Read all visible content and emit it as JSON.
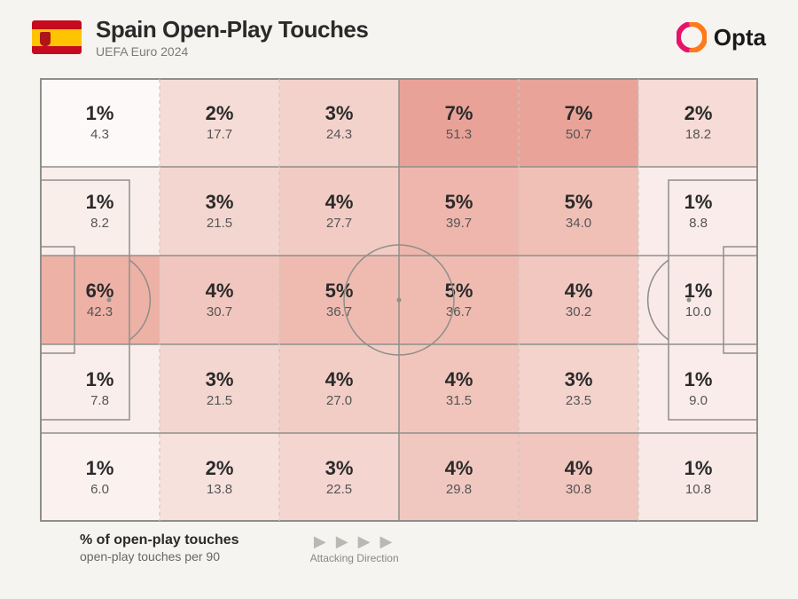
{
  "header": {
    "title": "Spain Open-Play Touches",
    "subtitle": "UEFA Euro 2024",
    "brand": "Opta",
    "flag_top_color": "#c60b1e",
    "flag_mid_color": "#ffc400",
    "flag_bot_color": "#c60b1e"
  },
  "legend": {
    "pct_label": "% of open-play touches",
    "val_label": "open-play touches per 90",
    "direction_label": "Attacking Direction"
  },
  "heatmap": {
    "type": "heatmap",
    "rows": 5,
    "cols": 6,
    "pitch_line_color": "#8f8f8a",
    "pitch_line_width": 1.5,
    "dashed_col_divider_color": "#c9c9c5",
    "percent_fontsize": 22,
    "percent_fontweight": 700,
    "value_fontsize": 15,
    "value_color": "#555555",
    "cells": [
      [
        {
          "pct": "1%",
          "val": "4.3",
          "bg": "#fdf9f8"
        },
        {
          "pct": "2%",
          "val": "17.7",
          "bg": "#f6dcd7"
        },
        {
          "pct": "3%",
          "val": "24.3",
          "bg": "#f4d2cc"
        },
        {
          "pct": "7%",
          "val": "51.3",
          "bg": "#e9a298"
        },
        {
          "pct": "7%",
          "val": "50.7",
          "bg": "#e9a399"
        },
        {
          "pct": "2%",
          "val": "18.2",
          "bg": "#f6dbd6"
        }
      ],
      [
        {
          "pct": "1%",
          "val": "8.2",
          "bg": "#faeeeb"
        },
        {
          "pct": "3%",
          "val": "21.5",
          "bg": "#f4d6d0"
        },
        {
          "pct": "4%",
          "val": "27.7",
          "bg": "#f2ccc4"
        },
        {
          "pct": "5%",
          "val": "39.7",
          "bg": "#eeb6ac"
        },
        {
          "pct": "5%",
          "val": "34.0",
          "bg": "#f0c0b7"
        },
        {
          "pct": "1%",
          "val": "8.8",
          "bg": "#faecea"
        }
      ],
      [
        {
          "pct": "6%",
          "val": "42.3",
          "bg": "#edb1a6"
        },
        {
          "pct": "4%",
          "val": "30.7",
          "bg": "#f1c6be"
        },
        {
          "pct": "5%",
          "val": "36.7",
          "bg": "#efbbb1"
        },
        {
          "pct": "5%",
          "val": "36.7",
          "bg": "#efbbb1"
        },
        {
          "pct": "4%",
          "val": "30.2",
          "bg": "#f1c7bf"
        },
        {
          "pct": "1%",
          "val": "10.0",
          "bg": "#f9eae7"
        }
      ],
      [
        {
          "pct": "1%",
          "val": "7.8",
          "bg": "#faeeec"
        },
        {
          "pct": "3%",
          "val": "21.5",
          "bg": "#f4d6d0"
        },
        {
          "pct": "4%",
          "val": "27.0",
          "bg": "#f2cdc6"
        },
        {
          "pct": "4%",
          "val": "31.5",
          "bg": "#f1c5bc"
        },
        {
          "pct": "3%",
          "val": "23.5",
          "bg": "#f4d3cd"
        },
        {
          "pct": "1%",
          "val": "9.0",
          "bg": "#faecea"
        }
      ],
      [
        {
          "pct": "1%",
          "val": "6.0",
          "bg": "#fbf2f0"
        },
        {
          "pct": "2%",
          "val": "13.8",
          "bg": "#f7e1dd"
        },
        {
          "pct": "3%",
          "val": "22.5",
          "bg": "#f4d5cf"
        },
        {
          "pct": "4%",
          "val": "29.8",
          "bg": "#f1c8c0"
        },
        {
          "pct": "4%",
          "val": "30.8",
          "bg": "#f1c6be"
        },
        {
          "pct": "1%",
          "val": "10.8",
          "bg": "#f9e9e6"
        }
      ]
    ]
  }
}
